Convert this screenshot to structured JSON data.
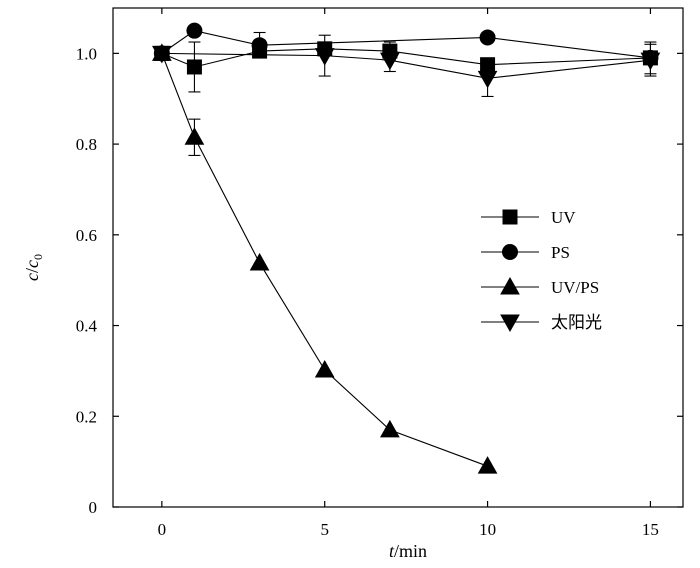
{
  "chart_data": {
    "type": "line",
    "xlabel": "t/min",
    "ylabel": "c/c0",
    "xlim": [
      -1.5,
      16
    ],
    "ylim": [
      0,
      1.1
    ],
    "xticks": [
      0,
      5,
      10,
      15
    ],
    "yticks": [
      0,
      0.2,
      0.4,
      0.6,
      0.8,
      1.0
    ],
    "ytick_labels": [
      "0",
      "0.2",
      "0.4",
      "0.6",
      "0.8",
      "1.0"
    ],
    "legend_position": "right-middle",
    "series": [
      {
        "name": "UV",
        "marker": "square",
        "x": [
          0,
          1,
          3,
          5,
          7,
          10,
          15
        ],
        "y": [
          1.0,
          0.97,
          1.005,
          1.01,
          1.005,
          0.975,
          0.99
        ],
        "err": [
          0,
          0.055,
          0,
          0,
          0.02,
          0,
          0.035
        ]
      },
      {
        "name": "PS",
        "marker": "circle",
        "x": [
          0,
          1,
          3,
          10,
          15
        ],
        "y": [
          1.0,
          1.05,
          1.018,
          1.035,
          0.99
        ],
        "err": [
          0,
          0,
          0.028,
          0,
          0
        ]
      },
      {
        "name": "UV/PS",
        "marker": "triangle-up",
        "x": [
          0,
          1,
          3,
          5,
          7,
          10
        ],
        "y": [
          1.0,
          0.815,
          0.538,
          0.302,
          0.17,
          0.09
        ],
        "err": [
          0,
          0.04,
          0,
          0,
          0,
          0
        ]
      },
      {
        "name": "太阳光",
        "marker": "triangle-down",
        "x": [
          0,
          5,
          7,
          10,
          15
        ],
        "y": [
          1.0,
          0.995,
          0.985,
          0.945,
          0.985
        ],
        "err": [
          0,
          0.045,
          0.025,
          0.04,
          0.035
        ]
      }
    ]
  }
}
